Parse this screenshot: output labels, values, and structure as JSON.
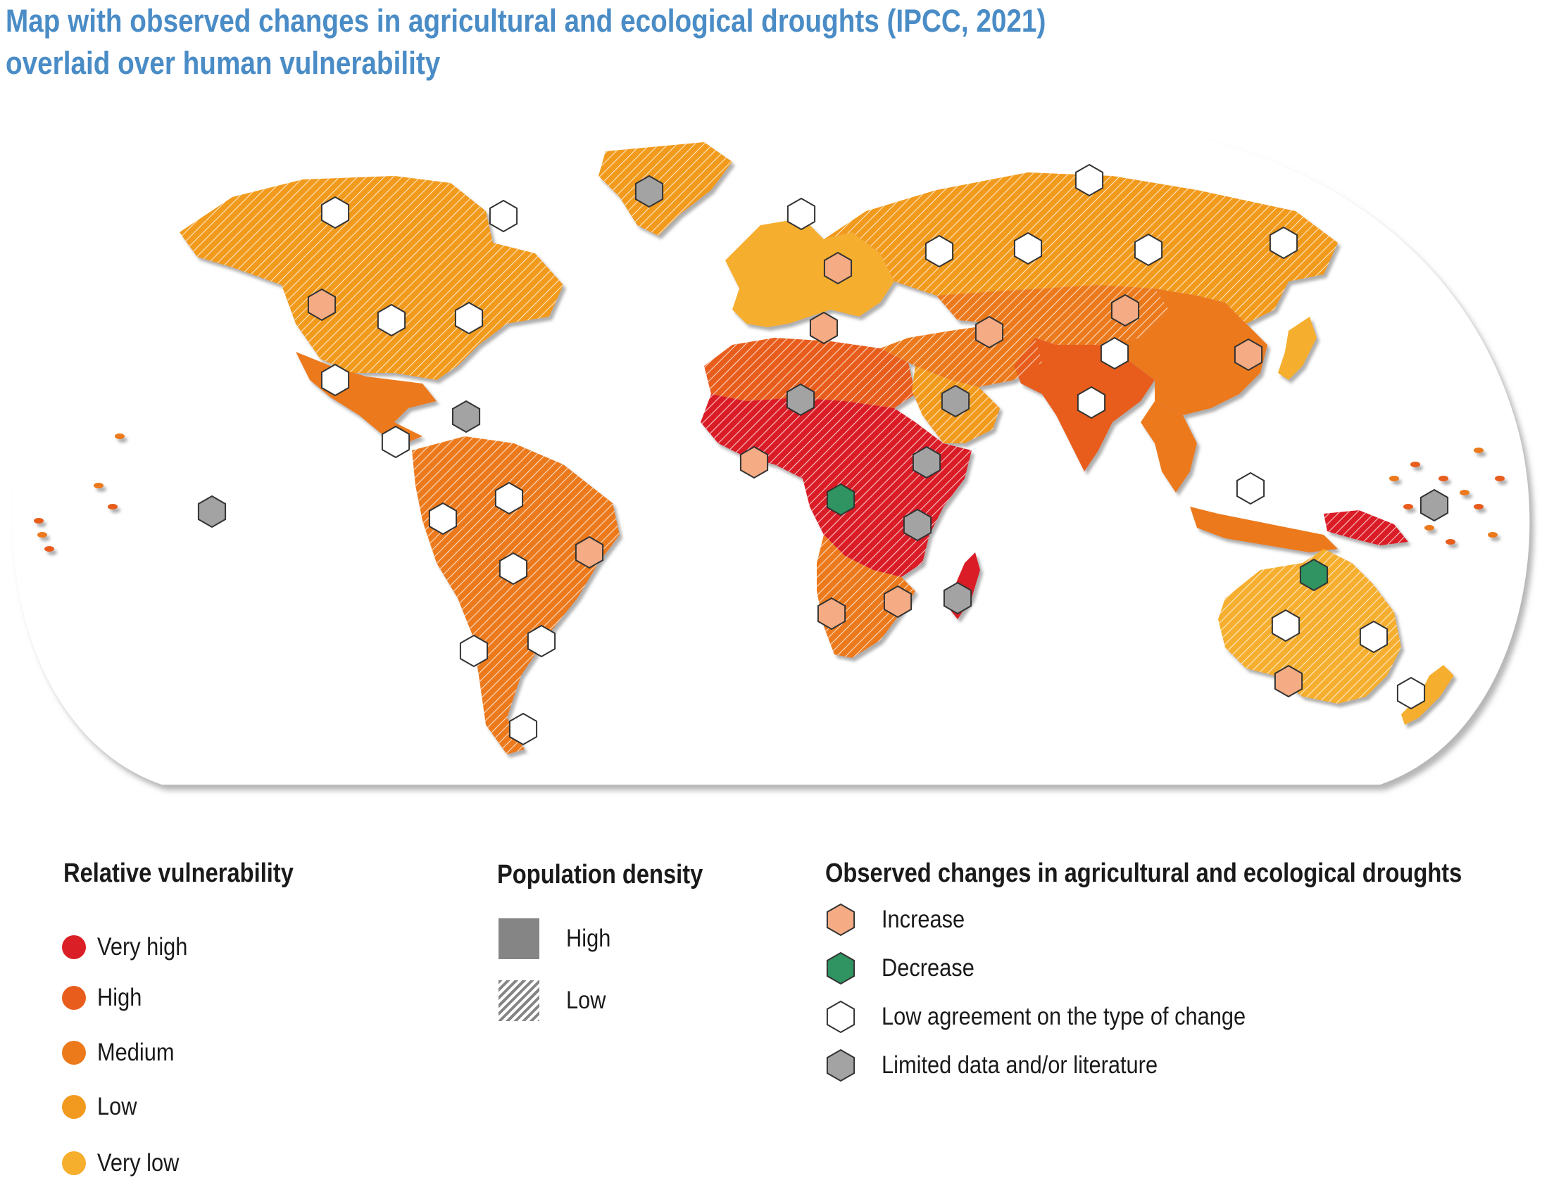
{
  "title": {
    "line1": "Map with observed changes in agricultural and ecological droughts (IPCC, 2021)",
    "line2": "overlaid over human vulnerability"
  },
  "colors": {
    "very_high": "#da1f26",
    "high": "#e85d1c",
    "medium": "#ec7a1b",
    "low": "#f29a1f",
    "very_low": "#f6ae2d",
    "hex_increase": "#f5ac84",
    "hex_decrease": "#2f9461",
    "hex_low_agreement": "#ffffff",
    "hex_limited": "#a3a3a3",
    "density_high": "#858585"
  },
  "legend": {
    "vulnerability": {
      "heading": "Relative vulnerability",
      "items": [
        {
          "label": "Very high",
          "color": "#da1f26"
        },
        {
          "label": "High",
          "color": "#e85d1c"
        },
        {
          "label": "Medium",
          "color": "#ec7a1b"
        },
        {
          "label": "Low",
          "color": "#f29a1f"
        },
        {
          "label": "Very low",
          "color": "#f6ae2d"
        }
      ]
    },
    "density": {
      "heading": "Population density",
      "items": [
        {
          "label": "High",
          "style": "solid"
        },
        {
          "label": "Low",
          "style": "hatched"
        }
      ]
    },
    "droughts": {
      "heading": "Observed changes in agricultural and ecological droughts",
      "items": [
        {
          "label": "Increase",
          "type": "increase"
        },
        {
          "label": "Decrease",
          "type": "decrease"
        },
        {
          "label": "Low agreement on the type of change",
          "type": "low_agreement"
        },
        {
          "label": "Limited data and/or literature",
          "type": "limited"
        }
      ]
    }
  },
  "map": {
    "regions": [
      {
        "name": "greenland",
        "vulnerability": "low",
        "density": "low"
      },
      {
        "name": "north-america",
        "vulnerability": "low",
        "density": "low"
      },
      {
        "name": "central-america",
        "vulnerability": "medium",
        "density": "high"
      },
      {
        "name": "south-america",
        "vulnerability": "medium",
        "density": "low"
      },
      {
        "name": "europe",
        "vulnerability": "very_low",
        "density": "high"
      },
      {
        "name": "north-africa",
        "vulnerability": "high",
        "density": "low"
      },
      {
        "name": "sub-saharan-africa",
        "vulnerability": "very_high",
        "density": "low"
      },
      {
        "name": "southern-africa",
        "vulnerability": "medium",
        "density": "low"
      },
      {
        "name": "madagascar",
        "vulnerability": "very_high",
        "density": "high"
      },
      {
        "name": "middle-east",
        "vulnerability": "medium",
        "density": "low"
      },
      {
        "name": "arabia",
        "vulnerability": "low",
        "density": "low"
      },
      {
        "name": "russia",
        "vulnerability": "low",
        "density": "low"
      },
      {
        "name": "central-asia",
        "vulnerability": "medium",
        "density": "low"
      },
      {
        "name": "south-asia",
        "vulnerability": "high",
        "density": "high"
      },
      {
        "name": "east-asia",
        "vulnerability": "medium",
        "density": "high"
      },
      {
        "name": "japan",
        "vulnerability": "very_low",
        "density": "high"
      },
      {
        "name": "southeast-asia",
        "vulnerability": "medium",
        "density": "high"
      },
      {
        "name": "indonesia",
        "vulnerability": "medium",
        "density": "high"
      },
      {
        "name": "papua-new-guinea",
        "vulnerability": "very_high",
        "density": "low"
      },
      {
        "name": "australia",
        "vulnerability": "very_low",
        "density": "low"
      },
      {
        "name": "new-zealand",
        "vulnerability": "very_low",
        "density": "high"
      }
    ],
    "hexagons": [
      {
        "region": "greenland",
        "type": "limited"
      },
      {
        "region": "north-west-canada",
        "type": "low_agreement"
      },
      {
        "region": "north-east-canada",
        "type": "low_agreement"
      },
      {
        "region": "western-north-america",
        "type": "increase"
      },
      {
        "region": "central-north-america",
        "type": "low_agreement"
      },
      {
        "region": "eastern-north-america",
        "type": "low_agreement"
      },
      {
        "region": "north-central-america",
        "type": "low_agreement"
      },
      {
        "region": "caribbean",
        "type": "limited"
      },
      {
        "region": "south-central-america",
        "type": "low_agreement"
      },
      {
        "region": "pacific-small-islands",
        "type": "limited"
      },
      {
        "region": "north-western-south-america",
        "type": "low_agreement"
      },
      {
        "region": "northern-south-america",
        "type": "low_agreement"
      },
      {
        "region": "north-eastern-south-america",
        "type": "increase"
      },
      {
        "region": "south-american-monsoon",
        "type": "low_agreement"
      },
      {
        "region": "south-western-south-america",
        "type": "low_agreement"
      },
      {
        "region": "south-eastern-south-america",
        "type": "low_agreement"
      },
      {
        "region": "southern-south-america",
        "type": "low_agreement"
      },
      {
        "region": "northern-europe",
        "type": "low_agreement"
      },
      {
        "region": "western-central-europe",
        "type": "increase"
      },
      {
        "region": "mediterranean",
        "type": "increase"
      },
      {
        "region": "sahara",
        "type": "limited"
      },
      {
        "region": "western-africa",
        "type": "increase"
      },
      {
        "region": "central-africa",
        "type": "decrease"
      },
      {
        "region": "north-eastern-africa",
        "type": "limited"
      },
      {
        "region": "south-eastern-africa",
        "type": "limited"
      },
      {
        "region": "western-southern-africa",
        "type": "increase"
      },
      {
        "region": "eastern-southern-africa",
        "type": "increase"
      },
      {
        "region": "madagascar",
        "type": "limited"
      },
      {
        "region": "arabian-peninsula",
        "type": "limited"
      },
      {
        "region": "eastern-europe",
        "type": "low_agreement"
      },
      {
        "region": "west-siberia",
        "type": "low_agreement"
      },
      {
        "region": "east-siberia",
        "type": "low_agreement"
      },
      {
        "region": "russian-arctic",
        "type": "low_agreement"
      },
      {
        "region": "russian-far-east",
        "type": "low_agreement"
      },
      {
        "region": "west-central-asia",
        "type": "increase"
      },
      {
        "region": "east-central-asia",
        "type": "increase"
      },
      {
        "region": "tibetan-plateau",
        "type": "low_agreement"
      },
      {
        "region": "east-asia",
        "type": "increase"
      },
      {
        "region": "south-asia",
        "type": "low_agreement"
      },
      {
        "region": "south-east-asia",
        "type": "low_agreement"
      },
      {
        "region": "northern-australia",
        "type": "decrease"
      },
      {
        "region": "central-australia",
        "type": "low_agreement"
      },
      {
        "region": "eastern-australia",
        "type": "low_agreement"
      },
      {
        "region": "southern-australia",
        "type": "increase"
      },
      {
        "region": "new-zealand",
        "type": "low_agreement"
      },
      {
        "region": "pacific-islands-west",
        "type": "limited"
      }
    ]
  }
}
